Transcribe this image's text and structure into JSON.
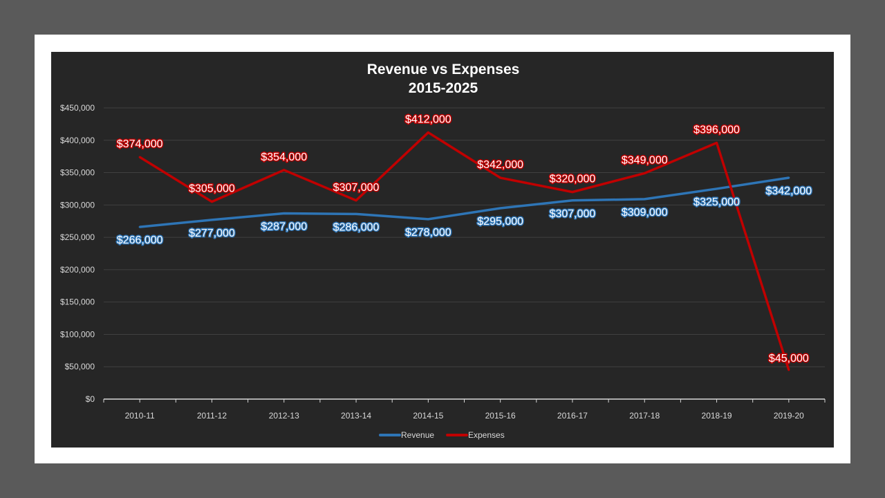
{
  "chart_data": {
    "type": "line",
    "title": "Revenue vs Expenses",
    "subtitle": "2015-2025",
    "categories": [
      "2010-11",
      "2011-12",
      "2012-13",
      "2013-14",
      "2014-15",
      "2015-16",
      "2016-17",
      "2017-18",
      "2018-19",
      "2019-20"
    ],
    "series": [
      {
        "name": "Revenue",
        "color": "#2e75b6",
        "values": [
          266000,
          277000,
          287000,
          286000,
          278000,
          295000,
          307000,
          309000,
          325000,
          342000
        ],
        "labels": [
          "$266,000",
          "$277,000",
          "$287,000",
          "$286,000",
          "$278,000",
          "$295,000",
          "$307,000",
          "$309,000",
          "$325,000",
          "$342,000"
        ]
      },
      {
        "name": "Expenses",
        "color": "#c00000",
        "values": [
          374000,
          305000,
          354000,
          307000,
          412000,
          342000,
          320000,
          349000,
          396000,
          45000
        ],
        "labels": [
          "$374,000",
          "$305,000",
          "$354,000",
          "$307,000",
          "$412,000",
          "$342,000",
          "$320,000",
          "$349,000",
          "$396,000",
          "$45,000"
        ]
      }
    ],
    "ylim": [
      0,
      450000
    ],
    "yticks": [
      "$0",
      "$50,000",
      "$100,000",
      "$150,000",
      "$200,000",
      "$250,000",
      "$300,000",
      "$350,000",
      "$400,000",
      "$450,000"
    ],
    "grid": true,
    "legend": "bottom",
    "xlabel": "",
    "ylabel": ""
  }
}
